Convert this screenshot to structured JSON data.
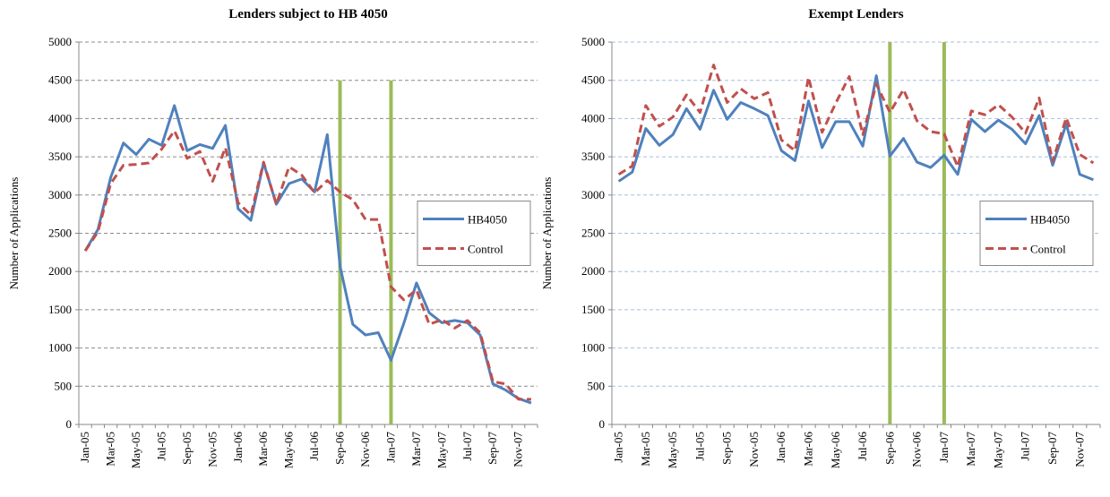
{
  "chart_data": [
    {
      "type": "line",
      "title": "Lenders subject to HB 4050",
      "y_label": "Number of Applications",
      "categories": [
        "Jan-05",
        null,
        "Mar-05",
        null,
        "May-05",
        null,
        "Jul-05",
        null,
        "Sep-05",
        null,
        "Nov-05",
        null,
        "Jan-06",
        null,
        "Mar-06",
        null,
        "May-06",
        null,
        "Jul-06",
        null,
        "Sep-06",
        null,
        "Nov-06",
        null,
        "Jan-07",
        null,
        "Mar-07",
        null,
        "May-07",
        null,
        "Jul-07",
        null,
        "Sep-07",
        null,
        "Nov-07",
        null
      ],
      "series": [
        {
          "name": "HB4050",
          "color": "#4f81bd",
          "style": "solid",
          "values": [
            2270,
            2550,
            3230,
            3680,
            3530,
            3730,
            3650,
            4170,
            3580,
            3660,
            3610,
            3910,
            2820,
            2670,
            3420,
            2880,
            3150,
            3210,
            3040,
            3790,
            2070,
            1310,
            1170,
            1200,
            840,
            1320,
            1850,
            1460,
            1330,
            1360,
            1330,
            1170,
            530,
            450,
            340,
            280
          ]
        },
        {
          "name": "Control",
          "color": "#c0504d",
          "style": "dashed",
          "values": [
            2270,
            2520,
            3150,
            3390,
            3400,
            3420,
            3600,
            3840,
            3480,
            3570,
            3180,
            3620,
            2900,
            2740,
            3430,
            2880,
            3370,
            3260,
            3030,
            3190,
            3040,
            2940,
            2680,
            2680,
            1800,
            1630,
            1760,
            1310,
            1370,
            1260,
            1360,
            1200,
            560,
            530,
            330,
            330
          ]
        }
      ],
      "vertical_lines": [
        {
          "at": "Sep-06",
          "to": 4500,
          "color": "#9bbb59"
        },
        {
          "at": "Jan-07",
          "to": 4500,
          "color": "#9bbb59"
        }
      ],
      "ylim": [
        0,
        5000
      ],
      "yticks": [
        0,
        500,
        1000,
        1500,
        2000,
        2500,
        3000,
        3500,
        4000,
        4500,
        5000
      ],
      "grid": true,
      "grid_color": "#8c8c8c",
      "legend": "right"
    },
    {
      "type": "line",
      "title": "Exempt Lenders",
      "y_label": "Number of Applications",
      "categories": [
        "Jan-05",
        null,
        "Mar-05",
        null,
        "May-05",
        null,
        "Jul-05",
        null,
        "Sep-05",
        null,
        "Nov-05",
        null,
        "Jan-06",
        null,
        "Mar-06",
        null,
        "May-06",
        null,
        "Jul-06",
        null,
        "Sep-06",
        null,
        "Nov-06",
        null,
        "Jan-07",
        null,
        "Mar-07",
        null,
        "May-07",
        null,
        "Jul-07",
        null,
        "Sep-07",
        null,
        "Nov-07",
        null
      ],
      "series": [
        {
          "name": "HB4050",
          "color": "#4f81bd",
          "style": "solid",
          "values": [
            3180,
            3300,
            3870,
            3650,
            3790,
            4130,
            3860,
            4370,
            3990,
            4210,
            4130,
            4040,
            3580,
            3450,
            4230,
            3620,
            3960,
            3960,
            3640,
            4560,
            3510,
            3740,
            3430,
            3360,
            3520,
            3270,
            3990,
            3830,
            3980,
            3860,
            3670,
            4040,
            3390,
            3930,
            3270,
            3200
          ]
        },
        {
          "name": "Control",
          "color": "#c0504d",
          "style": "dashed",
          "values": [
            3270,
            3380,
            4170,
            3900,
            4020,
            4310,
            4080,
            4700,
            4210,
            4390,
            4260,
            4340,
            3720,
            3580,
            4540,
            3820,
            4200,
            4550,
            3790,
            4450,
            4080,
            4380,
            3970,
            3830,
            3800,
            3370,
            4100,
            4050,
            4180,
            4020,
            3810,
            4270,
            3440,
            4010,
            3530,
            3420
          ]
        }
      ],
      "vertical_lines": [
        {
          "at": "Sep-06",
          "to": 5000,
          "color": "#9bbb59"
        },
        {
          "at": "Jan-07",
          "to": 5000,
          "color": "#9bbb59"
        }
      ],
      "ylim": [
        0,
        5000
      ],
      "yticks": [
        0,
        500,
        1000,
        1500,
        2000,
        2500,
        3000,
        3500,
        4000,
        4500,
        5000
      ],
      "grid": true,
      "grid_color": "#a6bfe0",
      "legend": "right"
    }
  ]
}
